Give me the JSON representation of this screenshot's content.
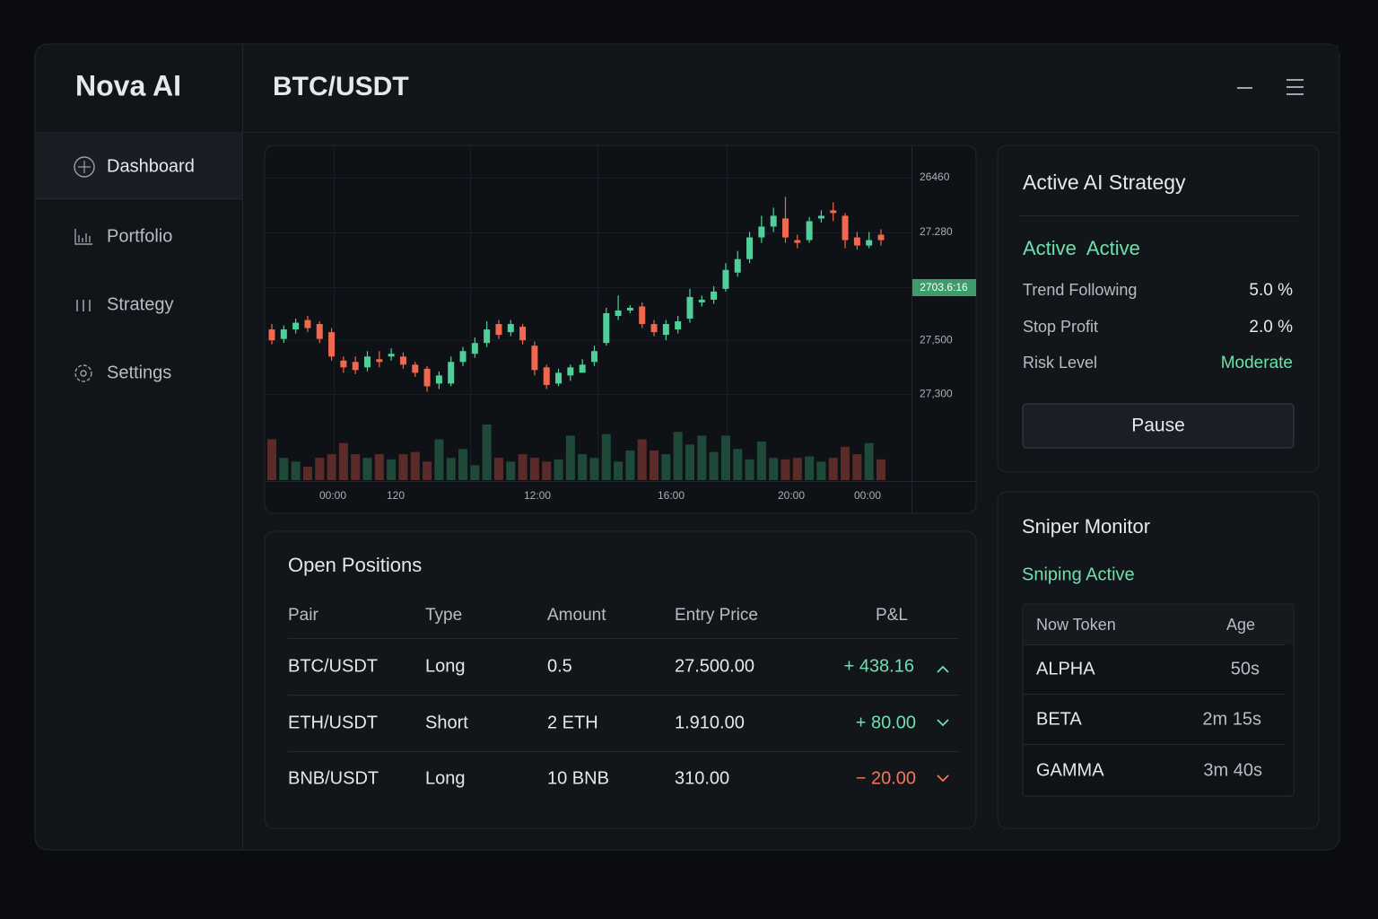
{
  "sidebar": {
    "brand": "Nova AI",
    "menu": [
      "Dashboard",
      "Portfolio",
      "Strategy",
      "Settings"
    ]
  },
  "header": {
    "title": "BTC/USDT"
  },
  "chart_data": {
    "type": "candlestick",
    "ylim": [
      26980,
      28220
    ],
    "yticks": [
      {
        "value": 27500,
        "label": "27,500"
      },
      {
        "value": 27300,
        "label": "27,300"
      }
    ],
    "axis_texts": [
      "26460",
      "27.280"
    ],
    "last_price_label": "2703.6:16",
    "x_tick_labels": [
      "00:00",
      "120",
      "12:00",
      "16:00",
      "20:00",
      "00:00"
    ],
    "up_color": "#4fd09a",
    "down_color": "#f0684f",
    "volume_up_color": "#1f4a3a",
    "volume_down_color": "#5a2b28",
    "open": [
      27540,
      27505,
      27540,
      27575,
      27560,
      27530,
      27425,
      27420,
      27400,
      27430,
      27440,
      27440,
      27410,
      27395,
      27340,
      27340,
      27420,
      27450,
      27490,
      27560,
      27530,
      27550,
      27480,
      27400,
      27340,
      27370,
      27380,
      27420,
      27490,
      27590,
      27610,
      27625,
      27560,
      27520,
      27540,
      27580,
      27640,
      27650,
      27690,
      27750,
      27800,
      27880,
      27920,
      27950,
      27870,
      27870,
      27950,
      27980,
      27960,
      27880,
      27850,
      27890
    ],
    "high": [
      27560,
      27555,
      27580,
      27590,
      27570,
      27545,
      27440,
      27440,
      27460,
      27460,
      27470,
      27455,
      27420,
      27405,
      27385,
      27440,
      27475,
      27510,
      27570,
      27575,
      27575,
      27560,
      27495,
      27410,
      27395,
      27410,
      27430,
      27480,
      27620,
      27665,
      27630,
      27640,
      27575,
      27575,
      27590,
      27690,
      27665,
      27700,
      27785,
      27830,
      27900,
      27960,
      27990,
      28030,
      27890,
      27955,
      27980,
      28010,
      27970,
      27900,
      27900,
      27910
    ],
    "low": [
      27485,
      27490,
      27525,
      27530,
      27490,
      27425,
      27380,
      27375,
      27385,
      27400,
      27425,
      27395,
      27365,
      27310,
      27320,
      27330,
      27405,
      27435,
      27475,
      27505,
      27515,
      27485,
      27370,
      27320,
      27330,
      27350,
      27390,
      27405,
      27480,
      27575,
      27600,
      27545,
      27515,
      27500,
      27525,
      27565,
      27625,
      27635,
      27680,
      27735,
      27785,
      27860,
      27900,
      27860,
      27840,
      27860,
      27935,
      27940,
      27840,
      27835,
      27840,
      27850
    ],
    "close": [
      27500,
      27540,
      27565,
      27545,
      27505,
      27440,
      27400,
      27390,
      27440,
      27420,
      27450,
      27410,
      27380,
      27330,
      27370,
      27420,
      27460,
      27490,
      27540,
      27520,
      27560,
      27500,
      27390,
      27335,
      27380,
      27400,
      27410,
      27460,
      27600,
      27610,
      27620,
      27560,
      27530,
      27560,
      27570,
      27660,
      27650,
      27680,
      27760,
      27800,
      27880,
      27920,
      27960,
      27880,
      27860,
      27940,
      27960,
      27970,
      27870,
      27850,
      27870,
      27870
    ],
    "volume": [
      55,
      30,
      25,
      18,
      30,
      35,
      50,
      35,
      30,
      35,
      28,
      35,
      38,
      25,
      55,
      30,
      42,
      20,
      75,
      30,
      25,
      35,
      30,
      25,
      28,
      60,
      35,
      30,
      62,
      25,
      40,
      55,
      40,
      35,
      65,
      48,
      60,
      38,
      60,
      42,
      28,
      52,
      30,
      28,
      30,
      32,
      25,
      30,
      45,
      35,
      50,
      28
    ]
  },
  "strategy": {
    "title": "Active AI Strategy",
    "status": "Active  Active",
    "rows": [
      [
        "Trend Following",
        "5.0 %"
      ],
      [
        "Stop Profit",
        "2.0 %"
      ],
      [
        "Risk Level",
        "Moderate"
      ]
    ],
    "button": "Pause"
  },
  "positions": {
    "title": "Open Positions",
    "columns": [
      "Pair",
      "Type",
      "Amount",
      "Entry Price",
      "P&L"
    ],
    "rows": [
      [
        "BTC/USDT",
        "Long",
        "0.5",
        "27.500.00",
        "+ 438.16"
      ],
      [
        "ETH/USDT",
        "Short",
        "2 ETH",
        "1.910.00",
        "+ 80.00"
      ],
      [
        "BNB/USDT",
        "Long",
        "10 BNB",
        "310.00",
        "− 20.00"
      ]
    ]
  },
  "sniper": {
    "title": "Sniper Monitor",
    "status": "Sniping Active",
    "columns": [
      "Now Token",
      "Age"
    ],
    "rows": [
      [
        "ALPHA",
        "50s"
      ],
      [
        "BETA",
        "2m 15s"
      ],
      [
        "GAMMA",
        "3m 40s"
      ]
    ]
  }
}
